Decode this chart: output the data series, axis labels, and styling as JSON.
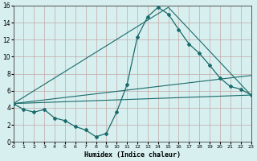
{
  "xlabel": "Humidex (Indice chaleur)",
  "bg_color": "#d7efef",
  "grid_color": "#c4a8a8",
  "line_color": "#1a6b6b",
  "xlim": [
    0,
    23
  ],
  "ylim": [
    0,
    16
  ],
  "xticks": [
    0,
    1,
    2,
    3,
    4,
    5,
    6,
    7,
    8,
    9,
    10,
    11,
    12,
    13,
    14,
    15,
    16,
    17,
    18,
    19,
    20,
    21,
    22,
    23
  ],
  "yticks": [
    0,
    2,
    4,
    6,
    8,
    10,
    12,
    14,
    16
  ],
  "series_with_markers": {
    "x": [
      0,
      1,
      2,
      3,
      4,
      5,
      6,
      7,
      8,
      9,
      10,
      11,
      12,
      13,
      14,
      15,
      16,
      17,
      18,
      19,
      20,
      21,
      22,
      23
    ],
    "y": [
      4.5,
      3.8,
      3.5,
      3.8,
      2.8,
      2.5,
      1.8,
      1.4,
      0.6,
      1.0,
      3.5,
      6.7,
      12.3,
      14.7,
      15.8,
      15.0,
      13.2,
      11.5,
      10.4,
      9.0,
      7.5,
      6.5,
      6.2,
      5.5
    ]
  },
  "straight_lines": [
    {
      "x": [
        0,
        23
      ],
      "y": [
        4.5,
        5.5
      ]
    },
    {
      "x": [
        0,
        15,
        23
      ],
      "y": [
        4.5,
        15.8,
        5.5
      ]
    },
    {
      "x": [
        0,
        23
      ],
      "y": [
        4.5,
        7.8
      ]
    }
  ]
}
